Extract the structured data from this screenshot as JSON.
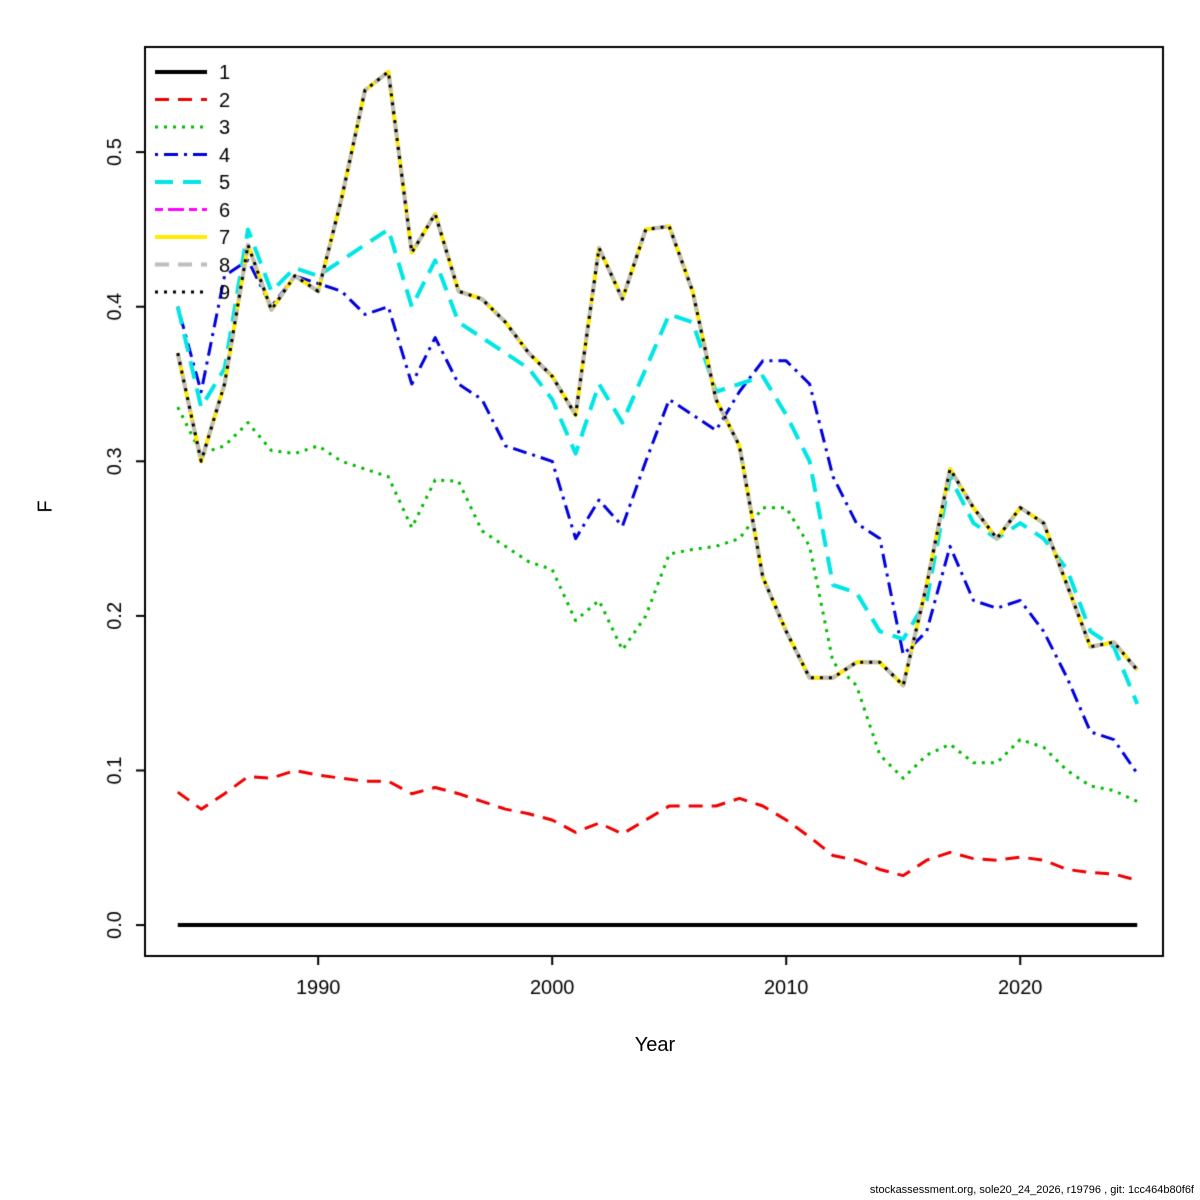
{
  "footer": "stockassessment.org, sole20_24_2026, r19796 , git: 1cc464b80f6f",
  "chart_data": {
    "type": "line",
    "title": "",
    "xlabel": "Year",
    "ylabel": "F",
    "grid": false,
    "legend_position": "top-left",
    "xlim": [
      1982.6,
      2026.1
    ],
    "ylim": [
      -0.02,
      0.568
    ],
    "x_ticks": [
      1990,
      2000,
      2010,
      2020
    ],
    "y_ticks": [
      0.0,
      0.1,
      0.2,
      0.3,
      0.4,
      0.5
    ],
    "x": [
      1984,
      1985,
      1986,
      1987,
      1988,
      1989,
      1990,
      1991,
      1992,
      1993,
      1994,
      1995,
      1996,
      1997,
      1998,
      1999,
      2000,
      2001,
      2002,
      2003,
      2004,
      2005,
      2006,
      2007,
      2008,
      2009,
      2010,
      2011,
      2012,
      2013,
      2014,
      2015,
      2016,
      2017,
      2018,
      2019,
      2020,
      2021,
      2022,
      2023,
      2024,
      2025
    ],
    "series": [
      {
        "name": "1",
        "color": "#000000",
        "dash": "solid",
        "lwd": 4,
        "values": [
          0,
          0,
          0,
          0,
          0,
          0,
          0,
          0,
          0,
          0,
          0,
          0,
          0,
          0,
          0,
          0,
          0,
          0,
          0,
          0,
          0,
          0,
          0,
          0,
          0,
          0,
          0,
          0,
          0,
          0,
          0,
          0,
          0,
          0,
          0,
          0,
          0,
          0,
          0,
          0,
          0,
          0
        ]
      },
      {
        "name": "2",
        "color": "#EE0000",
        "dash": "dashed",
        "lwd": 3,
        "values": [
          0.086,
          0.075,
          0.085,
          0.096,
          0.095,
          0.1,
          0.097,
          0.095,
          0.093,
          0.093,
          0.085,
          0.089,
          0.085,
          0.08,
          0.075,
          0.072,
          0.068,
          0.06,
          0.066,
          0.059,
          0.068,
          0.077,
          0.077,
          0.077,
          0.082,
          0.077,
          0.068,
          0.057,
          0.045,
          0.042,
          0.036,
          0.032,
          0.042,
          0.047,
          0.043,
          0.042,
          0.044,
          0.042,
          0.036,
          0.034,
          0.033,
          0.029
        ]
      },
      {
        "name": "3",
        "color": "#00BB00",
        "dash": "dotted",
        "lwd": 3,
        "values": [
          0.335,
          0.305,
          0.31,
          0.325,
          0.307,
          0.305,
          0.31,
          0.3,
          0.295,
          0.29,
          0.257,
          0.288,
          0.287,
          0.255,
          0.245,
          0.235,
          0.23,
          0.197,
          0.21,
          0.178,
          0.2,
          0.24,
          0.243,
          0.245,
          0.25,
          0.27,
          0.27,
          0.245,
          0.17,
          0.155,
          0.11,
          0.095,
          0.11,
          0.117,
          0.105,
          0.105,
          0.12,
          0.115,
          0.1,
          0.09,
          0.087,
          0.08
        ]
      },
      {
        "name": "4",
        "color": "#0000DD",
        "dash": "dotdash",
        "lwd": 3,
        "values": [
          0.4,
          0.345,
          0.42,
          0.43,
          0.4,
          0.42,
          0.415,
          0.41,
          0.395,
          0.4,
          0.35,
          0.38,
          0.35,
          0.34,
          0.31,
          0.305,
          0.3,
          0.25,
          0.275,
          0.258,
          0.3,
          0.34,
          0.33,
          0.32,
          0.345,
          0.365,
          0.365,
          0.35,
          0.29,
          0.26,
          0.25,
          0.175,
          0.19,
          0.245,
          0.21,
          0.205,
          0.21,
          0.19,
          0.16,
          0.125,
          0.12,
          0.098
        ]
      },
      {
        "name": "5",
        "color": "#00E5E5",
        "dash": "longdash",
        "lwd": 4,
        "values": [
          0.4,
          0.335,
          0.36,
          0.45,
          0.41,
          0.425,
          0.42,
          0.43,
          0.44,
          0.45,
          0.4,
          0.43,
          0.39,
          0.38,
          0.37,
          0.36,
          0.34,
          0.305,
          0.35,
          0.325,
          0.36,
          0.395,
          0.39,
          0.345,
          0.35,
          0.355,
          0.33,
          0.3,
          0.22,
          0.215,
          0.19,
          0.185,
          0.21,
          0.29,
          0.26,
          0.25,
          0.26,
          0.25,
          0.23,
          0.19,
          0.18,
          0.143
        ]
      },
      {
        "name": "6",
        "color": "#FF00FF",
        "dash": "twodash",
        "lwd": 3,
        "values": [
          0.37,
          0.3,
          0.35,
          0.44,
          0.398,
          0.42,
          0.41,
          0.47,
          0.54,
          0.552,
          0.435,
          0.46,
          0.41,
          0.405,
          0.39,
          0.37,
          0.355,
          0.33,
          0.438,
          0.405,
          0.45,
          0.452,
          0.41,
          0.34,
          0.31,
          0.225,
          0.19,
          0.16,
          0.16,
          0.17,
          0.17,
          0.155,
          0.22,
          0.295,
          0.27,
          0.25,
          0.27,
          0.26,
          0.22,
          0.18,
          0.183,
          0.165
        ]
      },
      {
        "name": "7",
        "color": "#FFEB00",
        "dash": "solid",
        "lwd": 4,
        "values": [
          0.37,
          0.3,
          0.35,
          0.44,
          0.398,
          0.42,
          0.41,
          0.47,
          0.54,
          0.552,
          0.435,
          0.46,
          0.41,
          0.405,
          0.39,
          0.37,
          0.355,
          0.33,
          0.438,
          0.405,
          0.45,
          0.452,
          0.41,
          0.34,
          0.31,
          0.225,
          0.19,
          0.16,
          0.16,
          0.17,
          0.17,
          0.155,
          0.22,
          0.295,
          0.27,
          0.25,
          0.27,
          0.26,
          0.22,
          0.18,
          0.183,
          0.165
        ]
      },
      {
        "name": "8",
        "color": "#BEBEBE",
        "dash": "dashed",
        "lwd": 4,
        "values": [
          0.37,
          0.3,
          0.35,
          0.44,
          0.398,
          0.42,
          0.41,
          0.47,
          0.54,
          0.552,
          0.435,
          0.46,
          0.41,
          0.405,
          0.39,
          0.37,
          0.355,
          0.33,
          0.438,
          0.405,
          0.45,
          0.452,
          0.41,
          0.34,
          0.31,
          0.225,
          0.19,
          0.16,
          0.16,
          0.17,
          0.17,
          0.155,
          0.22,
          0.295,
          0.27,
          0.25,
          0.27,
          0.26,
          0.22,
          0.18,
          0.183,
          0.165
        ]
      },
      {
        "name": "9",
        "color": "#000000",
        "dash": "dotted",
        "lwd": 3,
        "values": [
          0.37,
          0.3,
          0.35,
          0.44,
          0.398,
          0.42,
          0.41,
          0.47,
          0.54,
          0.552,
          0.435,
          0.46,
          0.41,
          0.405,
          0.39,
          0.37,
          0.355,
          0.33,
          0.438,
          0.405,
          0.45,
          0.452,
          0.41,
          0.34,
          0.31,
          0.225,
          0.19,
          0.16,
          0.16,
          0.17,
          0.17,
          0.155,
          0.22,
          0.295,
          0.27,
          0.25,
          0.27,
          0.26,
          0.22,
          0.18,
          0.183,
          0.165
        ]
      }
    ]
  }
}
